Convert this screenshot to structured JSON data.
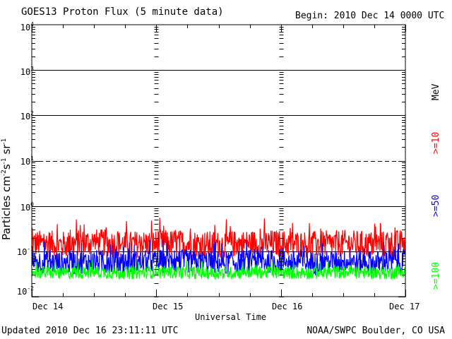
{
  "header": {
    "title": "GOES13 Proton Flux (5 minute data)",
    "begin": "Begin: 2010 Dec 14 0000 UTC"
  },
  "footer": {
    "updated": "Updated 2010 Dec 16 23:11:11 UTC",
    "source": "NOAA/SWPC Boulder, CO USA"
  },
  "legend": {
    "unit": "MeV",
    "items": [
      {
        "label": ">=10",
        "color": "#ff0000"
      },
      {
        "label": ">=50",
        "color": "#0000ff"
      },
      {
        "label": ">=100",
        "color": "#00ff00"
      }
    ]
  },
  "axes": {
    "xlabel": "Universal Time",
    "ylabel_main": "Particles cm",
    "ylabel_sup1": "-2",
    "ylabel_s": "s",
    "ylabel_sup2": "-1",
    "ylabel_sr": "sr",
    "ylabel_sup3": "-1",
    "y_base": "10",
    "y_exponents": [
      "4",
      "3",
      "2",
      "1",
      "0",
      "-1",
      "-2"
    ],
    "x_ticks": [
      "Dec 14",
      "Dec 15",
      "Dec 16",
      "Dec 17"
    ]
  },
  "chart_data": {
    "type": "line",
    "title": "GOES13 Proton Flux (5 minute data)",
    "xlabel": "Universal Time",
    "ylabel": "Particles cm-2 s-1 sr-1",
    "yscale": "log",
    "ylim": [
      0.01,
      10000
    ],
    "xlim": [
      "2010-12-14 00:00",
      "2010-12-17 00:00"
    ],
    "x": [
      "2010-12-14 00:00",
      "2010-12-14 06:00",
      "2010-12-14 12:00",
      "2010-12-14 18:00",
      "2010-12-15 00:00",
      "2010-12-15 06:00",
      "2010-12-15 12:00",
      "2010-12-15 18:00",
      "2010-12-16 00:00",
      "2010-12-16 06:00",
      "2010-12-16 12:00",
      "2010-12-16 18:00",
      "2010-12-16 23:00"
    ],
    "series": [
      {
        "name": ">=10 MeV",
        "color": "#ff0000",
        "values": [
          0.15,
          0.14,
          0.16,
          0.14,
          0.15,
          0.15,
          0.14,
          0.15,
          0.15,
          0.14,
          0.15,
          0.14,
          0.15
        ]
      },
      {
        "name": ">=50 MeV",
        "color": "#0000ff",
        "values": [
          0.06,
          0.055,
          0.06,
          0.055,
          0.06,
          0.06,
          0.055,
          0.06,
          0.06,
          0.055,
          0.06,
          0.055,
          0.06
        ]
      },
      {
        "name": ">=100 MeV",
        "color": "#00ff00",
        "values": [
          0.035,
          0.033,
          0.035,
          0.033,
          0.035,
          0.034,
          0.033,
          0.035,
          0.034,
          0.033,
          0.035,
          0.033,
          0.034
        ]
      }
    ],
    "reference_lines": [
      {
        "y": 10,
        "style": "dashed"
      }
    ],
    "grid": true,
    "legend": "right"
  }
}
